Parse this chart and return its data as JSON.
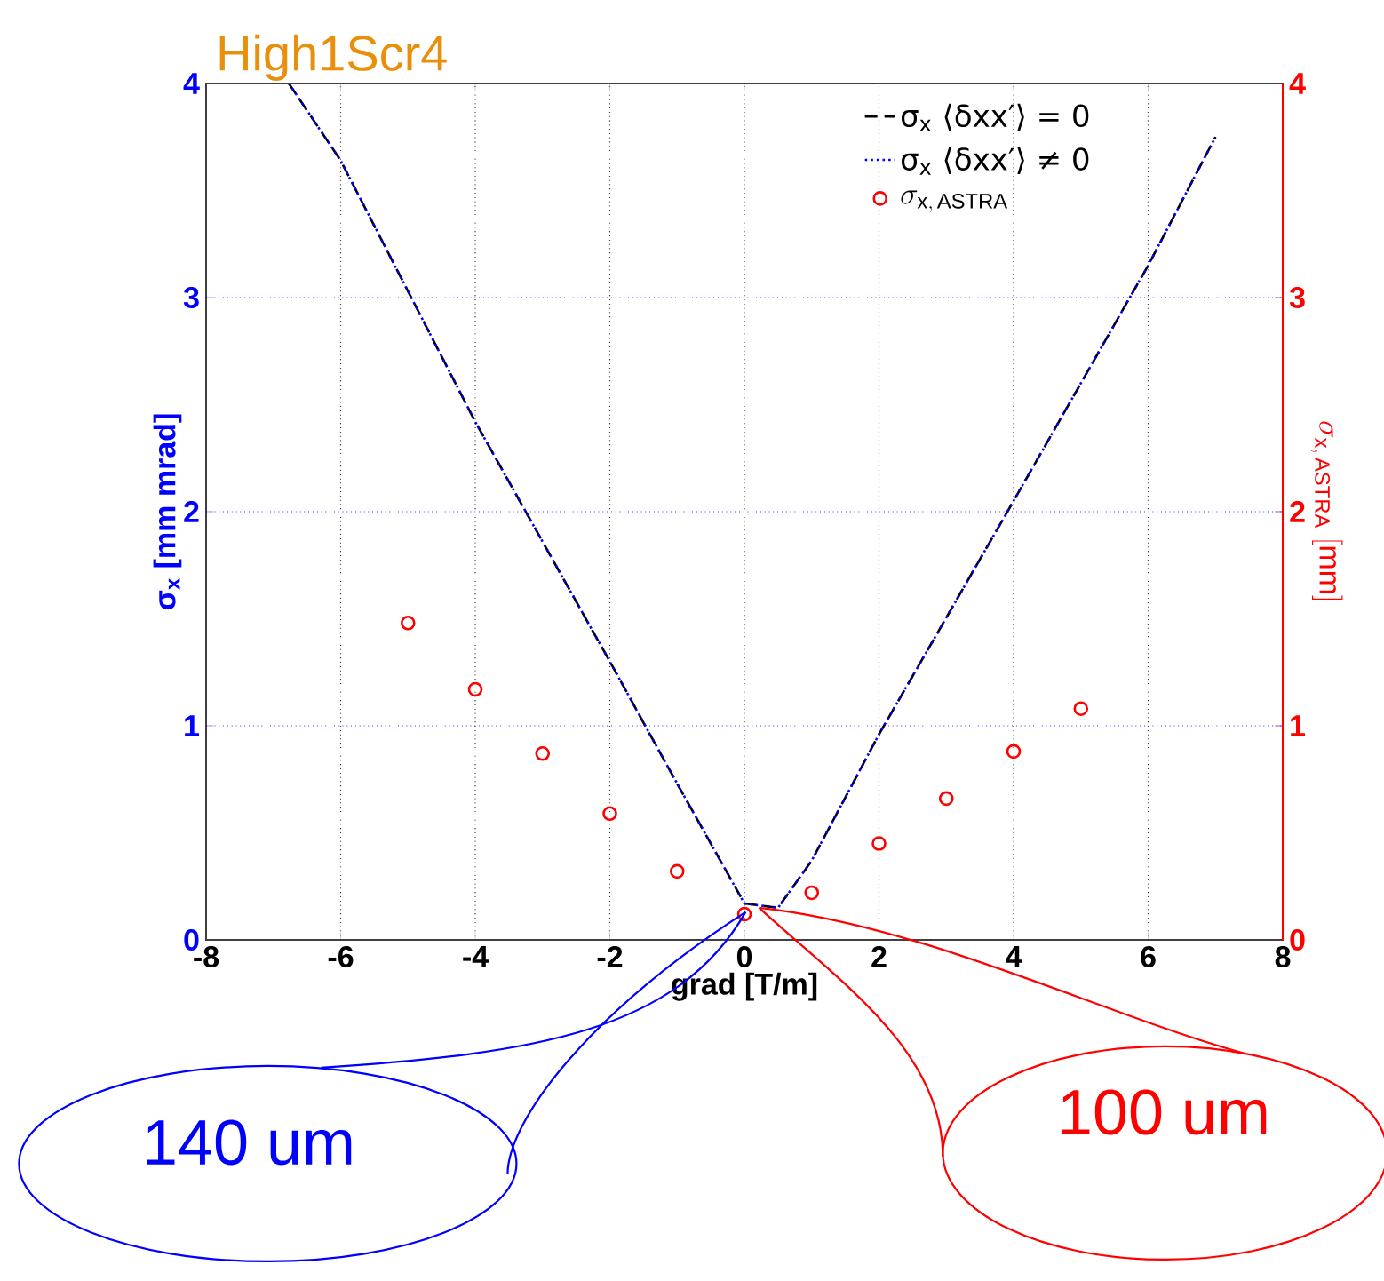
{
  "chart_data": {
    "type": "line",
    "title": "High1Scr4",
    "xlabel": "grad [T/m]",
    "ylabel": "σ$_{x}$ [mm mrad]",
    "y2label": "\\sigma_{\\mathrm{x,\\,ASTRA}}\\ [\\mathrm{mm}]",
    "xlim": [
      -8,
      8
    ],
    "xticks": [
      -8,
      -6,
      -4,
      -2,
      0,
      2,
      4,
      6,
      8
    ],
    "ylim": [
      0,
      4
    ],
    "yticks": [
      0,
      1,
      2,
      3,
      4
    ],
    "y2lim": [
      0,
      4
    ],
    "y2ticks": [
      0,
      1,
      2,
      3,
      4
    ],
    "grid": true,
    "legend": "top right",
    "series": [
      {
        "name": "σ$_{x}$ ⟨δxx′⟩ = 0",
        "color": "#000000",
        "line_style": "dashed",
        "x": [
          -6.77,
          -6,
          -4,
          -2,
          -1,
          0,
          0.5,
          1,
          2,
          4,
          6,
          7
        ],
        "values": [
          4,
          3.64,
          2.42,
          1.3,
          0.73,
          0.17,
          0.15,
          0.37,
          0.96,
          2.05,
          3.15,
          3.75
        ]
      },
      {
        "name": "σ$_{x}$ ⟨δxx′⟩ ≠ 0",
        "color": "#0000ff",
        "line_style": "dotted",
        "x": [
          -6.77,
          -6,
          -4,
          -2,
          -1,
          0,
          0.5,
          1,
          2,
          4,
          6,
          7
        ],
        "values": [
          4,
          3.64,
          2.42,
          1.3,
          0.73,
          0.17,
          0.15,
          0.37,
          0.96,
          2.05,
          3.15,
          3.75
        ]
      },
      {
        "name": "\\sigma_{\\mathrm{x,\\,ASTRA}}",
        "type": "scatter",
        "marker": "circle",
        "axis": "y2",
        "color": "#ff0000",
        "x": [
          -5,
          -4,
          -3,
          -2,
          -1,
          0,
          1,
          2,
          3,
          4,
          5
        ],
        "values": [
          1.48,
          1.17,
          0.87,
          0.59,
          0.32,
          0.12,
          0.22,
          0.45,
          0.66,
          0.88,
          1.08
        ]
      }
    ],
    "annotations": [
      {
        "text": "140 um",
        "x": 0,
        "y": 0.13
      },
      {
        "text": "100 um",
        "x": 0.2,
        "y": 0.15
      }
    ]
  }
}
